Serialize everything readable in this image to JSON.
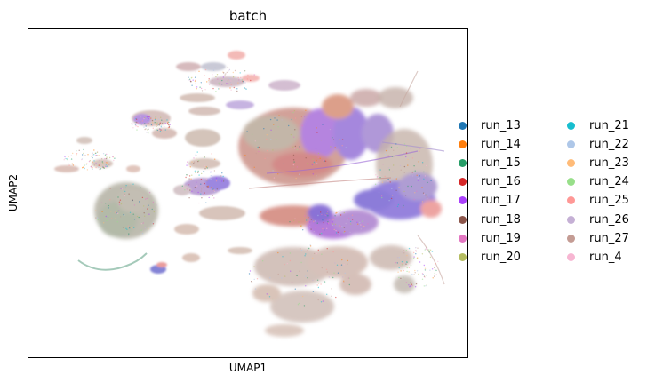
{
  "chart_data": {
    "type": "scatter",
    "title": "batch",
    "xlabel": "UMAP1",
    "ylabel": "UMAP2",
    "grid": false,
    "ticks": "none",
    "legend_position": "right, outside plot, two columns",
    "series": [
      {
        "name": "run_13",
        "color": "#1f77b4"
      },
      {
        "name": "run_14",
        "color": "#ff7f0e"
      },
      {
        "name": "run_15",
        "color": "#279e68"
      },
      {
        "name": "run_16",
        "color": "#d62728"
      },
      {
        "name": "run_17",
        "color": "#aa40fc"
      },
      {
        "name": "run_18",
        "color": "#8c564b"
      },
      {
        "name": "run_19",
        "color": "#e377c2"
      },
      {
        "name": "run_20",
        "color": "#b5bd61"
      },
      {
        "name": "run_21",
        "color": "#17becf"
      },
      {
        "name": "run_22",
        "color": "#aec7e8"
      },
      {
        "name": "run_23",
        "color": "#ffbb78"
      },
      {
        "name": "run_24",
        "color": "#98df8a"
      },
      {
        "name": "run_25",
        "color": "#ff9896"
      },
      {
        "name": "run_26",
        "color": "#c5b0d5"
      },
      {
        "name": "run_27",
        "color": "#c49c94"
      },
      {
        "name": "run_4",
        "color": "#f7b6d2"
      }
    ]
  }
}
